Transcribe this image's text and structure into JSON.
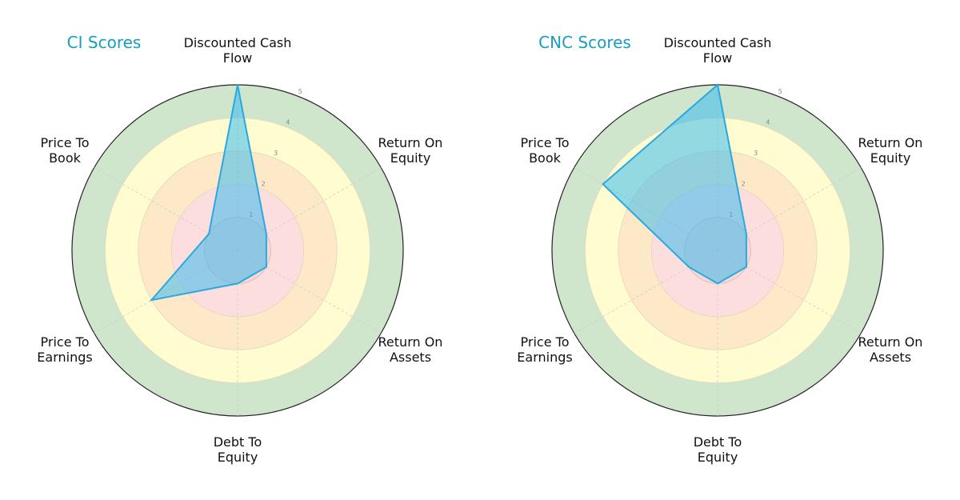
{
  "colors": {
    "title": "#1a9bc4",
    "polygon_fill": "#3bbcee",
    "polygon_stroke": "#2aa8e0",
    "ring_5": "#cfe6cc",
    "ring_4": "#fffdd0",
    "ring_3": "#fde8c8",
    "ring_2": "#fddede",
    "ring_1": "#f6d6d6",
    "outer_border": "#222222"
  },
  "chart_data": [
    {
      "type": "radar",
      "title": "CI Scores",
      "axes": [
        "Discounted Cash Flow",
        "Return On Equity",
        "Return On Assets",
        "Debt To Equity",
        "Price To Earnings",
        "Price To Book"
      ],
      "values": [
        5,
        1,
        1,
        1,
        3,
        1
      ],
      "rlim": [
        0,
        5
      ],
      "rticks": [
        1,
        2,
        3,
        4,
        5
      ]
    },
    {
      "type": "radar",
      "title": "CNC Scores",
      "axes": [
        "Discounted Cash Flow",
        "Return On Equity",
        "Return On Assets",
        "Debt To Equity",
        "Price To Earnings",
        "Price To Book"
      ],
      "values": [
        5,
        1,
        1,
        1,
        1,
        4
      ],
      "rlim": [
        0,
        5
      ],
      "rticks": [
        1,
        2,
        3,
        4,
        5
      ]
    }
  ],
  "charts": [
    {
      "title": "CI Scores",
      "labels": [
        [
          "Discounted Cash",
          "Flow"
        ],
        [
          "Return On",
          "Equity"
        ],
        [
          "Return On",
          "Assets"
        ],
        [
          "Debt To",
          "Equity"
        ],
        [
          "Price To",
          "Earnings"
        ],
        [
          "Price To",
          "Book"
        ]
      ],
      "ticks": [
        "1",
        "2",
        "3",
        "4",
        "5"
      ]
    },
    {
      "title": "CNC Scores",
      "labels": [
        [
          "Discounted Cash",
          "Flow"
        ],
        [
          "Return On",
          "Equity"
        ],
        [
          "Return On",
          "Assets"
        ],
        [
          "Debt To",
          "Equity"
        ],
        [
          "Price To",
          "Earnings"
        ],
        [
          "Price To",
          "Book"
        ]
      ],
      "ticks": [
        "1",
        "2",
        "3",
        "4",
        "5"
      ]
    }
  ]
}
